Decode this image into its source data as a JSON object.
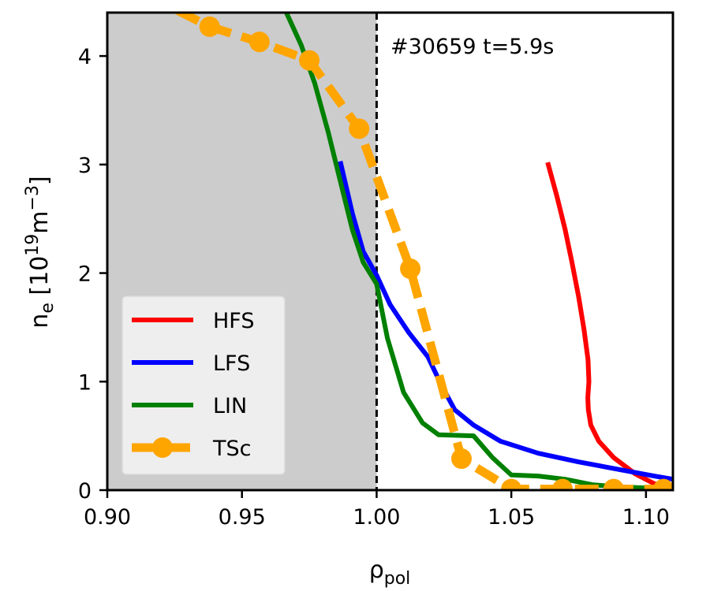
{
  "chart_data": {
    "type": "line",
    "title": "",
    "annotation": "#30659 t=5.9s",
    "xlabel": {
      "main": "ρ",
      "sub": "pol"
    },
    "ylabel": {
      "base": "n",
      "base_sub": "e",
      "unit_prefix": " [10",
      "exp1": "19",
      "unit_mid": "m",
      "exp2": "−3",
      "unit_suffix": "]"
    },
    "xlim": [
      0.9,
      1.11
    ],
    "ylim": [
      0,
      4.4
    ],
    "xticks": [
      0.9,
      0.95,
      1.0,
      1.05,
      1.1
    ],
    "xtick_labels": [
      "0.90",
      "0.95",
      "1.00",
      "1.05",
      "1.10"
    ],
    "yticks": [
      0,
      1,
      2,
      3,
      4
    ],
    "ytick_labels": [
      "0",
      "1",
      "2",
      "3",
      "4"
    ],
    "shaded_region": {
      "x": [
        0.9,
        1.0
      ],
      "color": "#cccccc"
    },
    "separatrix_x": 1.0,
    "grid": false,
    "legend_position": "lower-left",
    "series": [
      {
        "name": "HFS",
        "color": "#ff0000",
        "style": "solid",
        "x": [
          1.0635,
          1.067,
          1.07,
          1.0725,
          1.075,
          1.077,
          1.0785,
          1.0788,
          1.0784,
          1.0786,
          1.0795,
          1.0825,
          1.088,
          1.096,
          1.103,
          1.107
        ],
        "y": [
          3.02,
          2.7,
          2.4,
          2.1,
          1.78,
          1.48,
          1.2,
          1.0,
          0.85,
          0.74,
          0.6,
          0.45,
          0.3,
          0.15,
          0.06,
          0.02
        ]
      },
      {
        "name": "LFS",
        "color": "#0000ff",
        "style": "solid",
        "x": [
          0.9865,
          0.991,
          0.995,
          1.0,
          1.005,
          1.012,
          1.019,
          1.024,
          1.029,
          1.036,
          1.046,
          1.06,
          1.075,
          1.09,
          1.103,
          1.11
        ],
        "y": [
          3.03,
          2.55,
          2.2,
          1.98,
          1.71,
          1.45,
          1.23,
          0.97,
          0.74,
          0.6,
          0.45,
          0.34,
          0.26,
          0.19,
          0.13,
          0.1
        ]
      },
      {
        "name": "LIN",
        "color": "#008000",
        "style": "solid",
        "x": [
          0.9665,
          0.972,
          0.977,
          0.982,
          0.987,
          0.991,
          0.995,
          1.0,
          1.004,
          1.01,
          1.017,
          1.023,
          1.036,
          1.043,
          1.05,
          1.06,
          1.07,
          1.08,
          1.09,
          1.1,
          1.11
        ],
        "y": [
          4.4,
          4.1,
          3.75,
          3.3,
          2.8,
          2.4,
          2.1,
          1.9,
          1.4,
          0.9,
          0.62,
          0.51,
          0.5,
          0.3,
          0.14,
          0.13,
          0.1,
          0.05,
          0.03,
          0.02,
          0.02
        ]
      },
      {
        "name": "TSc",
        "color": "#ffa500",
        "style": "dashed",
        "marker": "circle",
        "x": [
          0.926,
          0.938,
          0.9565,
          0.975,
          0.9935,
          1.0125,
          1.0315,
          1.05,
          1.069,
          1.088,
          1.1065
        ],
        "y": [
          4.42,
          4.27,
          4.13,
          3.96,
          3.33,
          2.04,
          0.29,
          0.01,
          0.01,
          0.01,
          0.01
        ]
      }
    ]
  }
}
